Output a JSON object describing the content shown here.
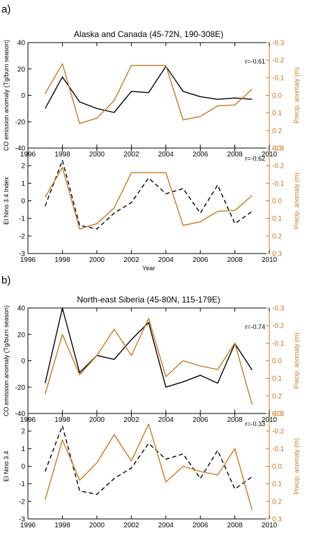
{
  "colors": {
    "black": "#000000",
    "orange": "#c8781e"
  },
  "panels": [
    {
      "panel_label": "a)",
      "chart_data": [
        {
          "type": "line",
          "title": "Alaska and Canada (45-72N, 190-308E)",
          "ylabel": "CO emission anomaly (Tg/burn season)",
          "y2label": "Precip. anomaly (m)",
          "r_text": "r=-0.61",
          "xlim": [
            1996,
            2010
          ],
          "ylim": [
            -40,
            40
          ],
          "y2lim": [
            0.3,
            -0.3
          ],
          "xticks": [
            "1996",
            "1998",
            "2000",
            "2002",
            "2004",
            "2006",
            "2008",
            "2010"
          ],
          "yticks": [
            "-40",
            "-20",
            "0",
            "20",
            "40"
          ],
          "y2ticks": [
            "-0.3",
            "-0.2",
            "-0.1",
            "0.0",
            "0.1",
            "0.2",
            "0.3"
          ],
          "series": [
            {
              "axis": "left",
              "style": "solid",
              "color": "#000000",
              "x": [
                1997,
                1998,
                1999,
                2000,
                2001,
                2002,
                2003,
                2004,
                2005,
                2006,
                2007,
                2008,
                2009
              ],
              "values": [
                -10,
                14,
                -5,
                -10,
                -13,
                3,
                2,
                22,
                3,
                -1,
                -3,
                -2,
                -3
              ]
            },
            {
              "axis": "right",
              "style": "solid",
              "color": "#c8781e",
              "x": [
                1997,
                1998,
                1999,
                2000,
                2001,
                2002,
                2003,
                2004,
                2005,
                2006,
                2007,
                2008,
                2009
              ],
              "values": [
                -0.01,
                -0.18,
                0.16,
                0.13,
                0.03,
                -0.17,
                -0.17,
                -0.17,
                0.14,
                0.12,
                0.06,
                0.055,
                -0.035
              ]
            }
          ]
        },
        {
          "type": "line",
          "title": "",
          "xlabel": "Year",
          "ylabel": "El Nino 3.4 Index",
          "y2label": "Precip. anomaly (m)",
          "r_text": "r=-0.62",
          "xlim": [
            1996,
            2010
          ],
          "ylim": [
            -3,
            3
          ],
          "y2lim": [
            0.3,
            -0.3
          ],
          "xticks": [
            "1996",
            "1998",
            "2000",
            "2002",
            "2004",
            "2006",
            "2008",
            "2010"
          ],
          "yticks": [
            "-3",
            "-2",
            "-1",
            "0",
            "1",
            "2"
          ],
          "y2ticks": [
            "-0.3",
            "-0.2",
            "-0.1",
            "0.0",
            "0.1",
            "0.2",
            "0.3"
          ],
          "series": [
            {
              "axis": "left",
              "style": "dashed",
              "color": "#000000",
              "x": [
                1997,
                1998,
                1999,
                2000,
                2001,
                2002,
                2003,
                2004,
                2005,
                2006,
                2007,
                2008,
                2009
              ],
              "values": [
                -0.3,
                2.3,
                -1.4,
                -1.6,
                -0.7,
                -0.1,
                1.3,
                0.4,
                0.7,
                -0.7,
                0.9,
                -1.3,
                -0.6
              ]
            },
            {
              "axis": "right",
              "style": "solid",
              "color": "#c8781e",
              "x": [
                1997,
                1998,
                1999,
                2000,
                2001,
                2002,
                2003,
                2004,
                2005,
                2006,
                2007,
                2008,
                2009
              ],
              "values": [
                -0.02,
                -0.19,
                0.16,
                0.13,
                0.04,
                -0.16,
                -0.16,
                -0.16,
                0.14,
                0.12,
                0.06,
                0.055,
                -0.03
              ]
            }
          ]
        }
      ]
    },
    {
      "panel_label": "b)",
      "chart_data": [
        {
          "type": "line",
          "title": "North-east Siberia (45-80N, 115-179E)",
          "ylabel": "CO emission anomaly (Tg/burn season)",
          "y2label": "Precip. anomaly (m)",
          "r_text": "r=-0.74",
          "xlim": [
            1996,
            2010
          ],
          "ylim": [
            -40,
            40
          ],
          "y2lim": [
            0.3,
            -0.3
          ],
          "xticks": [
            "1996",
            "1998",
            "2000",
            "2002",
            "2004",
            "2006",
            "2008",
            "2010"
          ],
          "yticks": [
            "-40",
            "-20",
            "0",
            "20",
            "40"
          ],
          "y2ticks": [
            "-0.3",
            "-0.2",
            "-0.1",
            "0.0",
            "0.1",
            "0.2",
            "0.3"
          ],
          "series": [
            {
              "axis": "left",
              "style": "solid",
              "color": "#000000",
              "x": [
                1997,
                1998,
                1999,
                2000,
                2001,
                2002,
                2003,
                2004,
                2005,
                2006,
                2007,
                2008,
                2009
              ],
              "values": [
                -17,
                40,
                -9,
                4,
                1,
                16,
                29,
                -20,
                -16,
                -11,
                -17,
                13,
                -7
              ]
            },
            {
              "axis": "right",
              "style": "solid",
              "color": "#c8781e",
              "x": [
                1997,
                1998,
                1999,
                2000,
                2001,
                2002,
                2003,
                2004,
                2005,
                2006,
                2007,
                2008,
                2009
              ],
              "values": [
                0.19,
                -0.15,
                0.08,
                -0.03,
                -0.18,
                -0.03,
                -0.24,
                0.09,
                0.0,
                0.03,
                0.05,
                -0.1,
                0.25
              ]
            }
          ]
        },
        {
          "type": "line",
          "title": "",
          "ylabel": "El Nino 3.4",
          "y2label": "Precip. anomaly (m)",
          "r_text": "r=-0.33",
          "xlim": [
            1996,
            2010
          ],
          "ylim": [
            -3,
            3
          ],
          "y2lim": [
            0.3,
            -0.3
          ],
          "xticks": [
            "1996",
            "1998",
            "2000",
            "2002",
            "2004",
            "2006",
            "2008",
            "2010"
          ],
          "yticks": [
            "-3",
            "-2",
            "-1",
            "0",
            "1",
            "2"
          ],
          "y2ticks": [
            "-0.3",
            "-0.2",
            "-0.1",
            "0.0",
            "0.1",
            "0.2",
            "0.3"
          ],
          "series": [
            {
              "axis": "left",
              "style": "dashed",
              "color": "#000000",
              "x": [
                1997,
                1998,
                1999,
                2000,
                2001,
                2002,
                2003,
                2004,
                2005,
                2006,
                2007,
                2008,
                2009
              ],
              "values": [
                -0.3,
                2.3,
                -1.4,
                -1.6,
                -0.7,
                -0.1,
                1.3,
                0.4,
                0.7,
                -0.7,
                0.9,
                -1.3,
                -0.6
              ]
            },
            {
              "axis": "right",
              "style": "solid",
              "color": "#c8781e",
              "x": [
                1997,
                1998,
                1999,
                2000,
                2001,
                2002,
                2003,
                2004,
                2005,
                2006,
                2007,
                2008,
                2009
              ],
              "values": [
                0.19,
                -0.15,
                0.08,
                -0.02,
                -0.18,
                -0.03,
                -0.24,
                0.09,
                0.0,
                0.03,
                0.05,
                -0.1,
                0.25
              ]
            }
          ]
        }
      ]
    }
  ]
}
